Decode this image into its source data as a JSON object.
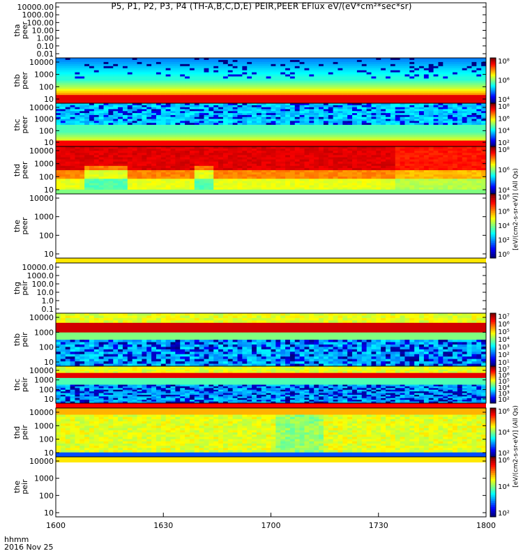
{
  "title": "P5, P1, P2, P3, P4 (TH-A,B,C,D,E) PEIR,PEER EFlux eV/(eV*cm²*sec*sr)",
  "x_labels": [
    "hhmm",
    "2016 Nov 25"
  ],
  "cb_unit_eflux": "[eV/(cm2-s-sr-eV)] (All Qs)",
  "cb_unit_flux": "eV/(cm^2-s-sr-eV)",
  "colors": {
    "low": "#1a0080",
    "high": "#d40000",
    "band": "#ffe800",
    "fillBad": "#ff0000"
  },
  "chart_data": {
    "type": "heatmap",
    "x": {
      "ticks": [
        "1600",
        "1630",
        "1700",
        "1730",
        "1800"
      ],
      "range": [
        "1600",
        "1800"
      ]
    },
    "panels": [
      {
        "probe": "tha",
        "species": "peer",
        "ylabels": [
          "10000.00",
          "1000.00",
          "100.00",
          "10.00",
          "1.00",
          "0.10",
          "0.01"
        ],
        "empty": true,
        "colorbar": false
      },
      {
        "probe": "thb",
        "species": "peer",
        "ylabels": [
          "10000",
          "1000",
          "100",
          "10"
        ],
        "style": "peer_b",
        "colorbar": true,
        "cb_ticks": [
          "10⁸",
          "10⁶",
          "10⁴"
        ]
      },
      {
        "probe": "thc",
        "species": "peer",
        "ylabels": [
          "10000",
          "1000",
          "100",
          "10"
        ],
        "style": "peer_c",
        "colorbar": true,
        "cb_ticks": [
          "10⁸",
          "10⁶",
          "10⁴",
          "10²"
        ]
      },
      {
        "probe": "thd",
        "species": "peer",
        "ylabels": [
          "10000",
          "1000",
          "100",
          "10"
        ],
        "style": "peer_d",
        "colorbar": true,
        "cb_ticks": [
          "10⁸",
          "10⁶",
          "10⁴"
        ]
      },
      {
        "probe": "the",
        "species": "peer",
        "ylabels": [
          "10000",
          "1000",
          "100",
          "10"
        ],
        "empty": true,
        "colorbar": true,
        "cb_ticks": [
          "10⁸",
          "10⁶",
          "10⁴",
          "10²",
          "10⁰"
        ],
        "bottom_band": "yellow"
      },
      {
        "probe": "thg",
        "species": "peir",
        "ylabels": [
          "10000.0",
          "1000.0",
          "100.0",
          "10.0",
          "1.0",
          "0.1"
        ],
        "empty": true,
        "colorbar": false,
        "bottom_band": "yellow"
      },
      {
        "probe": "thb",
        "species": "peir",
        "ylabels": [
          "10000",
          "1000",
          "100",
          "10"
        ],
        "style": "peir_b",
        "colorbar": true,
        "cb_ticks": [
          "10⁷",
          "10⁶",
          "10⁵",
          "10⁴",
          "10³",
          "10²",
          "10¹"
        ]
      },
      {
        "probe": "thc",
        "species": "peir",
        "ylabels": [
          "10000",
          "1000",
          "100",
          "10"
        ],
        "style": "peir_c",
        "colorbar": true,
        "cb_ticks": [
          "10⁷",
          "10⁶",
          "10⁵",
          "10⁴",
          "10³",
          "10²"
        ],
        "bottom_band": "red"
      },
      {
        "probe": "thd",
        "species": "peir",
        "ylabels": [
          "10000",
          "1000",
          "100",
          "10"
        ],
        "style": "peir_d",
        "colorbar": true,
        "cb_ticks": [
          "10⁶",
          "10⁴",
          "10²"
        ],
        "bottom_band": "yellow"
      },
      {
        "probe": "the",
        "species": "peir",
        "ylabels": [
          "10000",
          "1000",
          "100",
          "10"
        ],
        "empty": true,
        "colorbar": true,
        "cb_ticks": [
          "10⁶",
          "10⁴",
          "10²"
        ]
      }
    ]
  }
}
